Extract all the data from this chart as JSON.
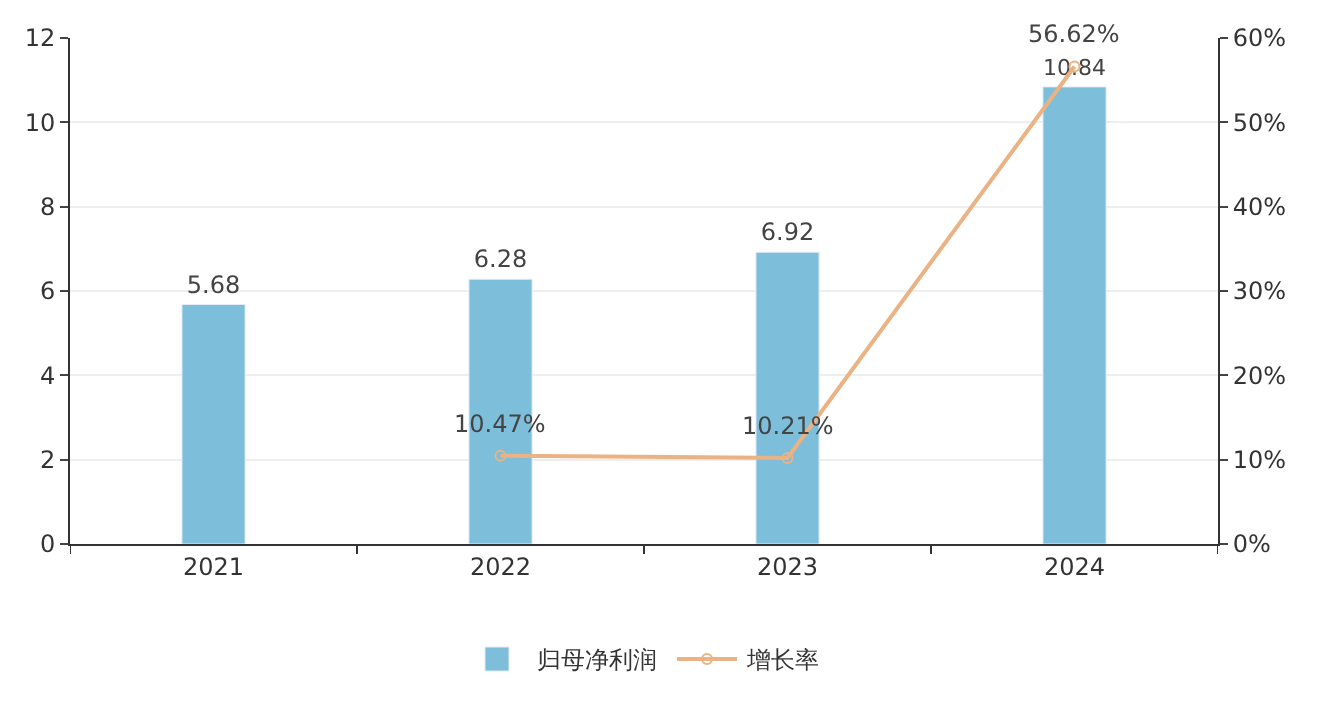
{
  "chart_data": {
    "type": "bar",
    "categories": [
      "2021",
      "2022",
      "2023",
      "2024"
    ],
    "series": [
      {
        "name": "归母净利润",
        "color": "#7dbedb",
        "values": [
          5.68,
          6.28,
          6.92,
          10.84
        ],
        "value_labels": [
          "5.68",
          "6.28",
          "6.92",
          "10.84"
        ]
      },
      {
        "name": "增长率",
        "type": "line",
        "axis": "y2",
        "color": "#ebb283",
        "marker": "circle",
        "values": [
          null,
          10.47,
          10.21,
          56.62
        ],
        "value_labels": [
          null,
          "10.47%",
          "10.21%",
          "56.62%"
        ]
      }
    ],
    "ylim": [
      0,
      12
    ],
    "yticks": [
      0,
      2,
      4,
      6,
      8,
      10,
      12
    ],
    "y2lim": [
      0,
      60
    ],
    "y2ticks": [
      {
        "value": 0,
        "label": "0%"
      },
      {
        "value": 10,
        "label": "10%"
      },
      {
        "value": 20,
        "label": "20%"
      },
      {
        "value": 30,
        "label": "30%"
      },
      {
        "value": 40,
        "label": "40%"
      },
      {
        "value": 50,
        "label": "50%"
      },
      {
        "value": 60,
        "label": "60%"
      }
    ],
    "grid": "y",
    "legend": "bottom"
  }
}
